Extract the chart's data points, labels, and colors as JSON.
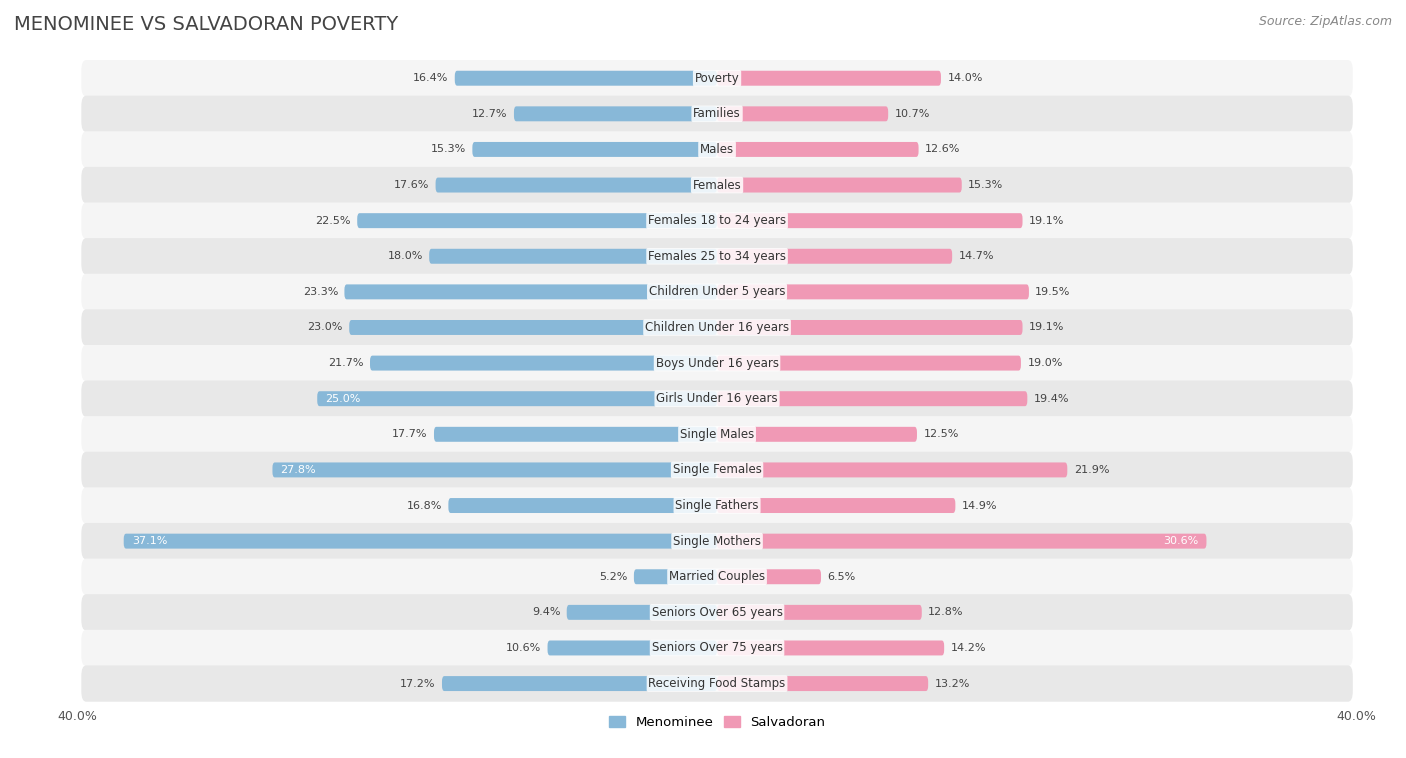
{
  "title": "MENOMINEE VS SALVADORAN POVERTY",
  "source": "Source: ZipAtlas.com",
  "categories": [
    "Poverty",
    "Families",
    "Males",
    "Females",
    "Females 18 to 24 years",
    "Females 25 to 34 years",
    "Children Under 5 years",
    "Children Under 16 years",
    "Boys Under 16 years",
    "Girls Under 16 years",
    "Single Males",
    "Single Females",
    "Single Fathers",
    "Single Mothers",
    "Married Couples",
    "Seniors Over 65 years",
    "Seniors Over 75 years",
    "Receiving Food Stamps"
  ],
  "menominee_values": [
    16.4,
    12.7,
    15.3,
    17.6,
    22.5,
    18.0,
    23.3,
    23.0,
    21.7,
    25.0,
    17.7,
    27.8,
    16.8,
    37.1,
    5.2,
    9.4,
    10.6,
    17.2
  ],
  "salvadoran_values": [
    14.0,
    10.7,
    12.6,
    15.3,
    19.1,
    14.7,
    19.5,
    19.1,
    19.0,
    19.4,
    12.5,
    21.9,
    14.9,
    30.6,
    6.5,
    12.8,
    14.2,
    13.2
  ],
  "menominee_color": "#88b8d8",
  "salvadoran_color": "#f099b5",
  "row_color_even": "#f5f5f5",
  "row_color_odd": "#e8e8e8",
  "background_color": "#ffffff",
  "xlim": 40.0,
  "bar_height": 0.42,
  "legend_menominee": "Menominee",
  "legend_salvadoran": "Salvadoran",
  "title_fontsize": 14,
  "source_fontsize": 9,
  "tick_fontsize": 9,
  "value_fontsize": 8,
  "category_fontsize": 8.5,
  "menominee_inside_threshold": 24.0,
  "salvadoran_inside_threshold": 28.0
}
